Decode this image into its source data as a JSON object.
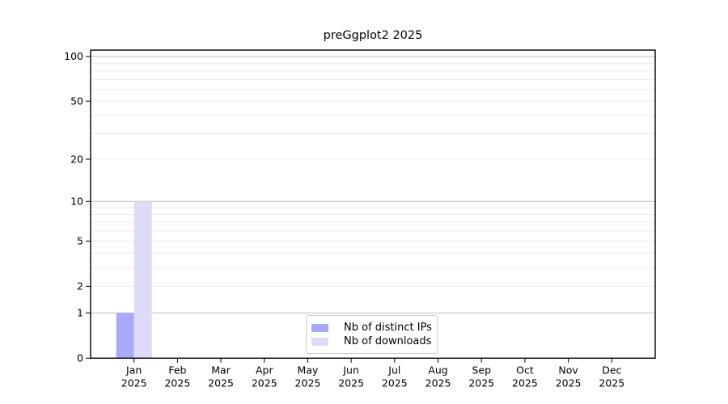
{
  "chart_data": {
    "type": "bar",
    "title": "preGgplot2 2025",
    "categories": [
      "Jan",
      "Feb",
      "Mar",
      "Apr",
      "May",
      "Jun",
      "Jul",
      "Aug",
      "Sep",
      "Oct",
      "Nov",
      "Dec"
    ],
    "x_tick_year": "2025",
    "series": [
      {
        "name": "Nb of distinct IPs",
        "color": "#a9a9f7",
        "values": [
          1,
          0,
          0,
          0,
          0,
          0,
          0,
          0,
          0,
          0,
          0,
          0
        ]
      },
      {
        "name": "Nb of downloads",
        "color": "#dcdcf8",
        "values": [
          10,
          0,
          0,
          0,
          0,
          0,
          0,
          0,
          0,
          0,
          0,
          0
        ]
      }
    ],
    "yscale": "log1p",
    "ytick_values": [
      0,
      1,
      2,
      5,
      10,
      20,
      50,
      100
    ],
    "ytick_labels": [
      "0",
      "1",
      "2",
      "5",
      "10",
      "20",
      "50",
      "100"
    ],
    "grid_major_values": [
      1,
      10,
      100
    ],
    "grid_minor_values": [
      2,
      3,
      4,
      5,
      6,
      7,
      8,
      9,
      20,
      30,
      40,
      50,
      60,
      70,
      80,
      90
    ],
    "ylim_top_value": 110,
    "legend_position": "lower center",
    "grid": "horizontal only",
    "xlabel": "",
    "ylabel": ""
  },
  "colors": {
    "axis": "#000000",
    "grid_major": "#bdbdbd",
    "grid_minor": "#ebebeb",
    "text": "#000000",
    "legend_border": "#cccccc",
    "background": "#ffffff"
  }
}
